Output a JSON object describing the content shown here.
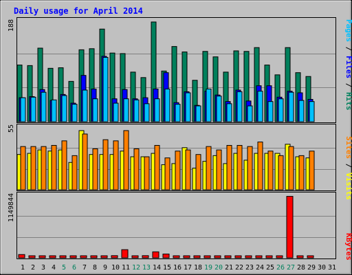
{
  "colors": {
    "background": "#c0c0c0",
    "plot_bg": "#c0c0c0",
    "grid": "#808080",
    "title": "#0000ff",
    "weekday": "#000000",
    "weekend": "#00805c",
    "hits": "#00805c",
    "files": "#0000ff",
    "pages": "#00c0ff",
    "visits": "#ffff00",
    "sites": "#ff8000",
    "kbytes": "#ff0000"
  },
  "chart_data": [
    {
      "type": "bar",
      "title": "Daily usage for April 2014",
      "categories": [
        "1",
        "2",
        "3",
        "4",
        "5",
        "6",
        "7",
        "8",
        "9",
        "10",
        "11",
        "12",
        "13",
        "14",
        "15",
        "16",
        "17",
        "18",
        "19",
        "20",
        "21",
        "22",
        "23",
        "24",
        "25",
        "26",
        "27",
        "28",
        "29",
        "30",
        "31"
      ],
      "weekend_days": [
        "5",
        "6",
        "12",
        "13",
        "19",
        "20",
        "26",
        "27"
      ],
      "ylim": [
        0,
        188
      ],
      "ytick_label": "188",
      "side_labels": {
        "pages": "Pages",
        "files": "Files",
        "hits": "Hits",
        "separator": " / "
      },
      "series": [
        {
          "name": "Hits",
          "values": [
            104,
            103,
            135,
            98,
            99,
            74,
            132,
            134,
            170,
            126,
            125,
            91,
            81,
            183,
            93,
            138,
            128,
            76,
            129,
            119,
            91,
            130,
            129,
            136,
            104,
            86,
            136,
            90,
            83,
            0,
            0
          ]
        },
        {
          "name": "Files",
          "values": [
            44,
            46,
            59,
            39,
            50,
            34,
            85,
            60,
            120,
            42,
            59,
            42,
            44,
            60,
            90,
            35,
            55,
            30,
            56,
            49,
            37,
            58,
            38,
            66,
            66,
            45,
            56,
            53,
            41,
            0,
            0
          ]
        },
        {
          "name": "Pages",
          "values": [
            44,
            45,
            54,
            40,
            48,
            32,
            58,
            42,
            118,
            34,
            42,
            40,
            33,
            42,
            60,
            32,
            53,
            29,
            60,
            47,
            33,
            55,
            29,
            56,
            37,
            42,
            54,
            39,
            37,
            0,
            0
          ]
        }
      ]
    },
    {
      "type": "bar",
      "categories": [
        "1",
        "2",
        "3",
        "4",
        "5",
        "6",
        "7",
        "8",
        "9",
        "10",
        "11",
        "12",
        "13",
        "14",
        "15",
        "16",
        "17",
        "18",
        "19",
        "20",
        "21",
        "22",
        "23",
        "24",
        "25",
        "26",
        "27",
        "28",
        "29",
        "30",
        "31"
      ],
      "ylim": [
        0,
        55
      ],
      "ytick_label": "55",
      "side_labels": {
        "sites": "Sites",
        "visits": "Visits",
        "separator": " / "
      },
      "series": [
        {
          "name": "Visits",
          "values": [
            31,
            32,
            35,
            34,
            35,
            24,
            52,
            31,
            31,
            31,
            34,
            29,
            29,
            32,
            22,
            23,
            37,
            19,
            25,
            30,
            23,
            32,
            26,
            32,
            32,
            32,
            40,
            29,
            28,
            0,
            0
          ]
        },
        {
          "name": "Sites",
          "values": [
            38,
            38,
            38,
            39,
            43,
            30,
            49,
            36,
            44,
            43,
            52,
            36,
            29,
            39,
            28,
            34,
            35,
            31,
            38,
            35,
            39,
            39,
            38,
            42,
            34,
            30,
            38,
            30,
            34,
            0,
            0
          ]
        }
      ]
    },
    {
      "type": "bar",
      "categories": [
        "1",
        "2",
        "3",
        "4",
        "5",
        "6",
        "7",
        "8",
        "9",
        "10",
        "11",
        "12",
        "13",
        "14",
        "15",
        "16",
        "17",
        "18",
        "19",
        "20",
        "21",
        "22",
        "23",
        "24",
        "25",
        "26",
        "27",
        "28",
        "29",
        "30",
        "31"
      ],
      "ylim": [
        0,
        1149844
      ],
      "ytick_label": "1149844",
      "side_labels": {
        "kbytes": "KBytes"
      },
      "series": [
        {
          "name": "KBytes",
          "values": [
            60000,
            20000,
            20000,
            20000,
            20000,
            20000,
            20000,
            20000,
            20000,
            40000,
            150000,
            20000,
            40000,
            110000,
            70000,
            20000,
            20000,
            20000,
            20000,
            20000,
            20000,
            30000,
            20000,
            20000,
            20000,
            20000,
            1130000,
            20000,
            20000,
            0,
            0
          ]
        }
      ]
    }
  ]
}
